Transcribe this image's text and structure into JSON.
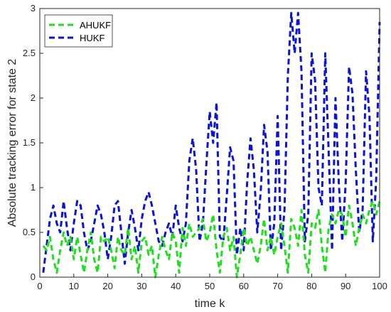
{
  "chart_data": {
    "type": "line",
    "xlabel": "time k",
    "ylabel": "Absolute tracking error for state 2",
    "xlim": [
      0,
      100
    ],
    "ylim": [
      0,
      3
    ],
    "xticks": [
      "0",
      "10",
      "20",
      "30",
      "40",
      "50",
      "60",
      "70",
      "80",
      "90",
      "100"
    ],
    "yticks": [
      "0",
      "0.5",
      "1",
      "1.5",
      "2",
      "2.5",
      "3"
    ],
    "legend_position": "top-left",
    "grid": false,
    "series": [
      {
        "name": "AHUKF",
        "color": "#22dd22",
        "style": "dashed",
        "x": [
          1,
          2,
          3,
          4,
          5,
          6,
          7,
          8,
          9,
          10,
          11,
          12,
          13,
          14,
          15,
          16,
          17,
          18,
          19,
          20,
          21,
          22,
          23,
          24,
          25,
          26,
          27,
          28,
          29,
          30,
          31,
          32,
          33,
          34,
          35,
          36,
          37,
          38,
          39,
          40,
          41,
          42,
          43,
          44,
          45,
          46,
          47,
          48,
          49,
          50,
          51,
          52,
          53,
          54,
          55,
          56,
          57,
          58,
          59,
          60,
          61,
          62,
          63,
          64,
          65,
          66,
          67,
          68,
          69,
          70,
          71,
          72,
          73,
          74,
          75,
          76,
          77,
          78,
          79,
          80,
          81,
          82,
          83,
          84,
          85,
          86,
          87,
          88,
          89,
          90,
          91,
          92,
          93,
          94,
          95,
          96,
          97,
          98,
          99,
          100
        ],
        "values": [
          0.35,
          0.3,
          0.45,
          0.2,
          0.05,
          0.3,
          0.5,
          0.35,
          0.45,
          0.2,
          0.45,
          0.25,
          0.05,
          0.3,
          0.5,
          0.2,
          0.05,
          0.45,
          0.4,
          0.45,
          0.3,
          0.1,
          0.45,
          0.3,
          0.25,
          0.55,
          0.2,
          0.35,
          0.05,
          0.4,
          0.45,
          0.25,
          0.35,
          0.0,
          0.25,
          0.45,
          0.3,
          0.2,
          0.5,
          0.4,
          0.05,
          0.55,
          0.35,
          0.6,
          0.45,
          0.5,
          0.55,
          0.65,
          0.4,
          0.5,
          0.7,
          0.3,
          0.05,
          0.45,
          0.55,
          0.3,
          0.45,
          0.0,
          0.25,
          0.55,
          0.35,
          0.45,
          0.3,
          0.15,
          0.35,
          0.65,
          0.3,
          0.45,
          0.25,
          0.45,
          0.6,
          0.35,
          0.05,
          0.65,
          0.55,
          0.35,
          0.75,
          0.25,
          0.05,
          0.6,
          0.55,
          0.75,
          0.35,
          0.05,
          0.55,
          0.7,
          0.6,
          0.75,
          0.7,
          0.45,
          0.8,
          0.6,
          0.35,
          0.55,
          0.7,
          0.6,
          0.75,
          0.85,
          0.7,
          0.85
        ]
      },
      {
        "name": "HUKF",
        "color": "#0a14d2",
        "style": "dashed",
        "x": [
          1,
          2,
          3,
          4,
          5,
          6,
          7,
          8,
          9,
          10,
          11,
          12,
          13,
          14,
          15,
          16,
          17,
          18,
          19,
          20,
          21,
          22,
          23,
          24,
          25,
          26,
          27,
          28,
          29,
          30,
          31,
          32,
          33,
          34,
          35,
          36,
          37,
          38,
          39,
          40,
          41,
          42,
          43,
          44,
          45,
          46,
          47,
          48,
          49,
          50,
          51,
          52,
          53,
          54,
          55,
          56,
          57,
          58,
          59,
          60,
          61,
          62,
          63,
          64,
          65,
          66,
          67,
          68,
          69,
          70,
          71,
          72,
          73,
          74,
          75,
          76,
          77,
          78,
          79,
          80,
          81,
          82,
          83,
          84,
          85,
          86,
          87,
          88,
          89,
          90,
          91,
          92,
          93,
          94,
          95,
          96,
          97,
          98,
          99,
          100
        ],
        "values": [
          0.05,
          0.35,
          0.65,
          0.8,
          0.6,
          0.5,
          0.85,
          0.55,
          0.3,
          0.6,
          0.85,
          0.8,
          0.5,
          0.3,
          0.4,
          0.6,
          0.8,
          0.7,
          0.5,
          0.2,
          0.45,
          0.8,
          0.85,
          0.5,
          0.15,
          0.5,
          0.75,
          0.55,
          0.3,
          0.65,
          0.85,
          0.95,
          0.8,
          0.6,
          0.4,
          0.35,
          0.5,
          0.6,
          0.45,
          0.8,
          0.55,
          0.4,
          0.6,
          1.3,
          1.55,
          1.2,
          0.4,
          0.6,
          1.25,
          1.85,
          1.5,
          1.95,
          0.45,
          0.4,
          0.9,
          1.45,
          1.3,
          0.25,
          0.55,
          0.3,
          1.05,
          1.55,
          1.2,
          0.5,
          0.95,
          1.7,
          1.4,
          0.3,
          0.6,
          1.8,
          0.3,
          0.75,
          2.25,
          2.95,
          2.5,
          2.95,
          2.3,
          0.4,
          0.7,
          2.5,
          2.2,
          1.0,
          0.8,
          2.5,
          1.4,
          0.3,
          2.0,
          1.05,
          0.4,
          1.05,
          2.35,
          2.05,
          1.2,
          0.5,
          0.75,
          2.3,
          1.8,
          0.4,
          1.1,
          2.85
        ]
      }
    ]
  }
}
